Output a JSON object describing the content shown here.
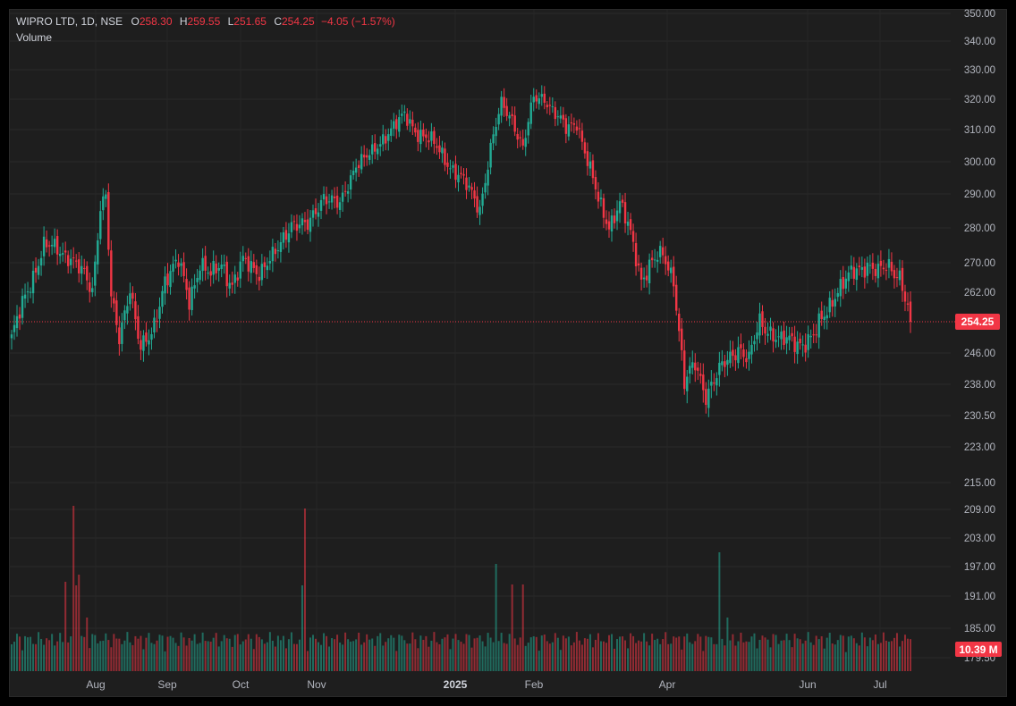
{
  "header": {
    "symbol": "WIPRO LTD, 1D, NSE",
    "open_label": "O",
    "open": "258.30",
    "high_label": "H",
    "high": "259.55",
    "low_label": "L",
    "low": "251.65",
    "close_label": "C",
    "close": "254.25",
    "change": "−4.05 (−1.57%)",
    "volume_label": "Volume"
  },
  "last_price_tag": "254.25",
  "volume_tag": "10.39 M",
  "colors": {
    "up": "#22ab94",
    "down": "#f23645",
    "background": "#1e1e1e",
    "grid": "#2a2a2a"
  },
  "chart_data": {
    "type": "candlestick",
    "title": "WIPRO LTD, 1D, NSE",
    "y_ticks": [
      350.0,
      340.0,
      330.0,
      320.0,
      310.0,
      300.0,
      290.0,
      280.0,
      270.0,
      262.0,
      254.25,
      246.0,
      238.0,
      230.5,
      223.0,
      215.0,
      209.0,
      203.0,
      197.0,
      191.0,
      185.0,
      179.5
    ],
    "y_tick_labels": [
      "350.00",
      "340.00",
      "330.00",
      "320.00",
      "310.00",
      "300.00",
      "290.00",
      "280.00",
      "270.00",
      "262.00",
      "246.00",
      "238.00",
      "230.50",
      "223.00",
      "215.00",
      "209.00",
      "203.00",
      "197.00",
      "191.00",
      "185.00",
      "179.50"
    ],
    "x_tick_labels": [
      "Aug",
      "Sep",
      "Oct",
      "Nov",
      "2025",
      "Feb",
      "Apr",
      "Jun",
      "Jul"
    ],
    "y_scale": "log",
    "last_price": 254.25,
    "volume_last": "10.39 M",
    "keypoints": [
      {
        "date": "Jul start",
        "close": 250
      },
      {
        "date": "late Jul high",
        "close": 289
      },
      {
        "date": "Aug low",
        "close": 242
      },
      {
        "date": "Oct",
        "close": 272
      },
      {
        "date": "Nov",
        "close": 282
      },
      {
        "date": "Dec high",
        "close": 319
      },
      {
        "date": "Jan low",
        "close": 284
      },
      {
        "date": "Feb high",
        "close": 323
      },
      {
        "date": "Mar",
        "close": 265
      },
      {
        "date": "Apr low",
        "close": 229
      },
      {
        "date": "May",
        "close": 255
      },
      {
        "date": "Jun",
        "close": 248
      },
      {
        "date": "late Jun high",
        "close": 271
      },
      {
        "date": "Jul last",
        "close": 254.25
      }
    ]
  }
}
